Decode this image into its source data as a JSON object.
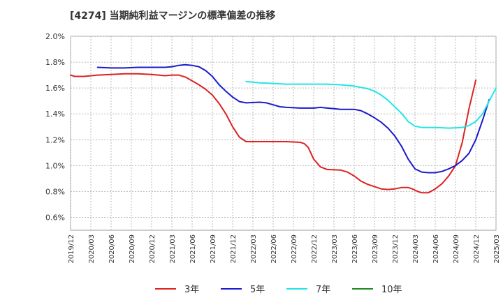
{
  "chart_data": {
    "type": "line",
    "title": "[4274]  当期純利益マージンの標準偏差の推移",
    "xlabel": "",
    "ylabel": "",
    "ylim": [
      0.5,
      2.0
    ],
    "y_ticks": [
      "0.6%",
      "0.8%",
      "1.0%",
      "1.2%",
      "1.4%",
      "1.6%",
      "1.8%",
      "2.0%"
    ],
    "y_tick_values": [
      0.6,
      0.8,
      1.0,
      1.2,
      1.4,
      1.6,
      1.8,
      2.0
    ],
    "x_ticks": [
      "2019/12",
      "2020/03",
      "2020/06",
      "2020/09",
      "2020/12",
      "2021/03",
      "2021/06",
      "2021/09",
      "2021/12",
      "2022/03",
      "2022/06",
      "2022/09",
      "2022/12",
      "2023/03",
      "2023/06",
      "2023/09",
      "2023/12",
      "2024/03",
      "2024/06",
      "2024/09",
      "2024/12",
      "2025/03"
    ],
    "grid": true,
    "legend_position": "bottom",
    "series": [
      {
        "name": "3年",
        "color": "#dd2222",
        "points": [
          [
            0,
            1.7
          ],
          [
            0.3,
            1.69
          ],
          [
            1,
            1.69
          ],
          [
            2,
            1.7
          ],
          [
            3,
            1.705
          ],
          [
            4,
            1.71
          ],
          [
            5,
            1.71
          ],
          [
            6,
            1.705
          ],
          [
            7,
            1.695
          ],
          [
            7.5,
            1.7
          ],
          [
            8,
            1.7
          ],
          [
            8.5,
            1.685
          ],
          [
            9,
            1.655
          ],
          [
            9.5,
            1.625
          ],
          [
            10,
            1.59
          ],
          [
            10.5,
            1.545
          ],
          [
            11,
            1.48
          ],
          [
            11.5,
            1.4
          ],
          [
            12,
            1.3
          ],
          [
            12.5,
            1.22
          ],
          [
            13,
            1.185
          ],
          [
            14,
            1.185
          ],
          [
            15,
            1.185
          ],
          [
            16,
            1.185
          ],
          [
            17,
            1.18
          ],
          [
            17.3,
            1.17
          ],
          [
            17.6,
            1.14
          ],
          [
            18,
            1.05
          ],
          [
            18.5,
            0.99
          ],
          [
            19,
            0.97
          ],
          [
            20,
            0.965
          ],
          [
            20.5,
            0.95
          ],
          [
            21,
            0.92
          ],
          [
            21.5,
            0.88
          ],
          [
            22,
            0.855
          ],
          [
            23,
            0.82
          ],
          [
            23.5,
            0.815
          ],
          [
            24,
            0.82
          ],
          [
            24.5,
            0.83
          ],
          [
            25,
            0.83
          ],
          [
            25.3,
            0.82
          ],
          [
            25.7,
            0.8
          ],
          [
            26,
            0.79
          ],
          [
            26.5,
            0.79
          ],
          [
            27,
            0.82
          ],
          [
            27.5,
            0.86
          ],
          [
            28,
            0.92
          ],
          [
            28.5,
            1.0
          ],
          [
            29,
            1.18
          ],
          [
            29.5,
            1.44
          ],
          [
            30,
            1.66
          ]
        ]
      },
      {
        "name": "5年",
        "color": "#1a1acc",
        "points": [
          [
            2,
            1.76
          ],
          [
            3,
            1.755
          ],
          [
            4,
            1.755
          ],
          [
            5,
            1.76
          ],
          [
            6,
            1.76
          ],
          [
            7,
            1.76
          ],
          [
            7.5,
            1.765
          ],
          [
            8,
            1.775
          ],
          [
            8.5,
            1.78
          ],
          [
            9,
            1.775
          ],
          [
            9.5,
            1.765
          ],
          [
            10,
            1.735
          ],
          [
            10.5,
            1.69
          ],
          [
            11,
            1.625
          ],
          [
            11.5,
            1.575
          ],
          [
            12,
            1.53
          ],
          [
            12.5,
            1.495
          ],
          [
            13,
            1.485
          ],
          [
            14,
            1.49
          ],
          [
            14.5,
            1.485
          ],
          [
            15,
            1.47
          ],
          [
            15.5,
            1.455
          ],
          [
            16,
            1.45
          ],
          [
            17,
            1.445
          ],
          [
            18,
            1.445
          ],
          [
            18.5,
            1.45
          ],
          [
            19,
            1.445
          ],
          [
            19.5,
            1.44
          ],
          [
            20,
            1.435
          ],
          [
            21,
            1.435
          ],
          [
            21.5,
            1.425
          ],
          [
            22,
            1.4
          ],
          [
            22.5,
            1.37
          ],
          [
            23,
            1.335
          ],
          [
            23.5,
            1.29
          ],
          [
            24,
            1.23
          ],
          [
            24.5,
            1.15
          ],
          [
            25,
            1.05
          ],
          [
            25.5,
            0.975
          ],
          [
            26,
            0.95
          ],
          [
            26.5,
            0.945
          ],
          [
            27,
            0.945
          ],
          [
            27.5,
            0.955
          ],
          [
            28,
            0.975
          ],
          [
            28.5,
            1.0
          ],
          [
            29,
            1.04
          ],
          [
            29.5,
            1.095
          ],
          [
            30,
            1.2
          ],
          [
            30.5,
            1.35
          ],
          [
            31,
            1.51
          ]
        ]
      },
      {
        "name": "7年",
        "color": "#22e6e6",
        "points": [
          [
            13,
            1.65
          ],
          [
            14,
            1.64
          ],
          [
            15,
            1.635
          ],
          [
            16,
            1.63
          ],
          [
            17,
            1.63
          ],
          [
            18,
            1.63
          ],
          [
            19,
            1.63
          ],
          [
            20,
            1.625
          ],
          [
            21,
            1.615
          ],
          [
            22,
            1.595
          ],
          [
            22.5,
            1.575
          ],
          [
            23,
            1.545
          ],
          [
            23.5,
            1.505
          ],
          [
            24,
            1.455
          ],
          [
            24.5,
            1.405
          ],
          [
            25,
            1.34
          ],
          [
            25.5,
            1.305
          ],
          [
            26,
            1.295
          ],
          [
            27,
            1.295
          ],
          [
            28,
            1.29
          ],
          [
            29,
            1.295
          ],
          [
            29.5,
            1.31
          ],
          [
            30,
            1.34
          ],
          [
            30.5,
            1.4
          ],
          [
            31,
            1.5
          ],
          [
            31.5,
            1.6
          ]
        ]
      },
      {
        "name": "10年",
        "color": "#228822",
        "points": []
      }
    ]
  }
}
